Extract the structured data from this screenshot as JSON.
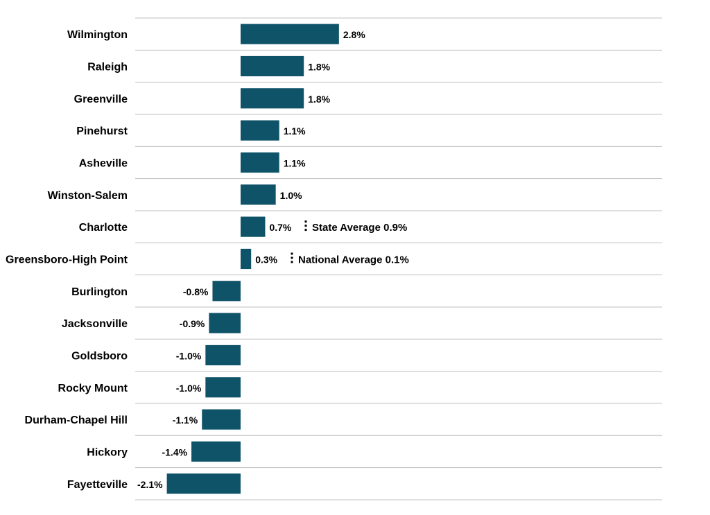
{
  "chart_data": {
    "type": "bar",
    "orientation": "horizontal",
    "categories": [
      "Wilmington",
      "Raleigh",
      "Greenville",
      "Pinehurst",
      "Asheville",
      "Winston-Salem",
      "Charlotte",
      "Greensboro-High Point",
      "Burlington",
      "Jacksonville",
      "Goldsboro",
      "Rocky Mount",
      "Durham-Chapel Hill",
      "Hickory",
      "Fayetteville"
    ],
    "values": [
      2.8,
      1.8,
      1.8,
      1.1,
      1.1,
      1.0,
      0.7,
      0.3,
      -0.8,
      -0.9,
      -1.0,
      -1.0,
      -1.1,
      -1.4,
      -2.1
    ],
    "value_labels": [
      "2.8%",
      "1.8%",
      "1.8%",
      "1.1%",
      "1.1%",
      "1.0%",
      "0.7%",
      "0.3%",
      "-0.8%",
      "-0.9%",
      "-1.0%",
      "-1.0%",
      "-1.1%",
      "-1.4%",
      "-2.1%"
    ],
    "xlim": [
      -3,
      12
    ],
    "bar_color": "#0f5369",
    "grid": "horizontal separators",
    "reference_lines": [
      {
        "label": "State Average 0.9%",
        "value": 0.9
      },
      {
        "label": "National Average 0.1%",
        "value": 0.1
      }
    ]
  }
}
